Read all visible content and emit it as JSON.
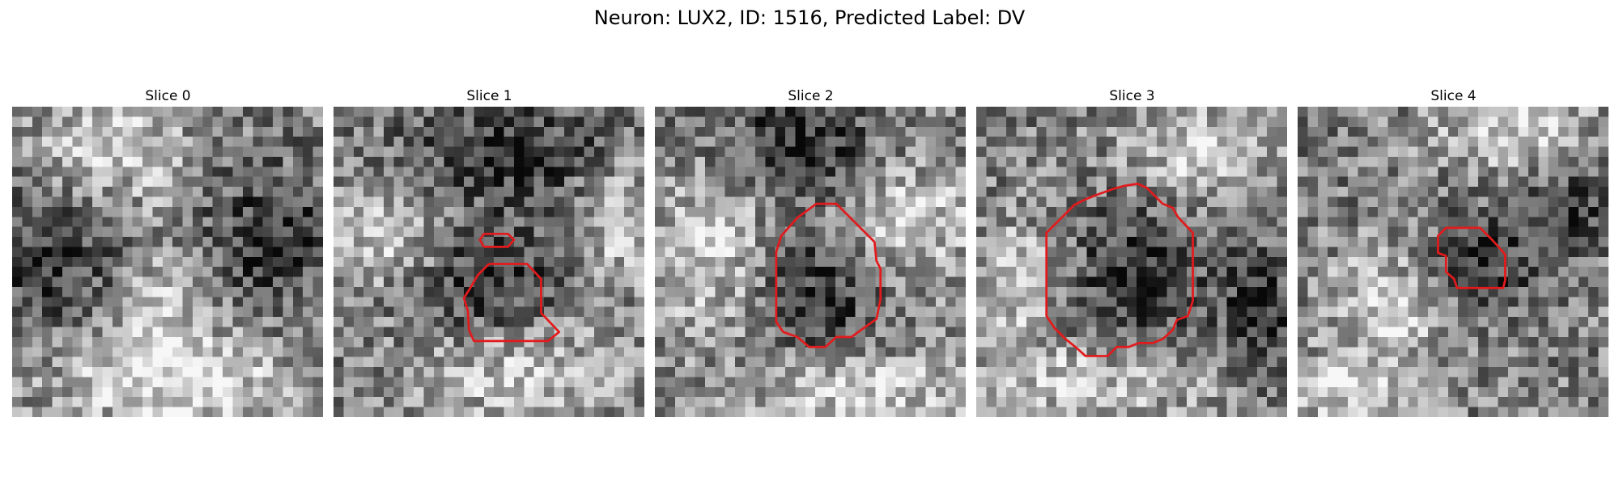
{
  "figure": {
    "title": "Neuron: LUX2, ID: 1516, Predicted Label: DV"
  },
  "contour_color": "#e31a1c",
  "colormap": "gray",
  "image_grid": [
    31,
    31
  ],
  "panels": [
    {
      "title": "Slice 0",
      "seed": 11,
      "dark": [
        [
          4,
          15,
          10,
          6
        ],
        [
          25,
          13,
          8,
          7
        ]
      ],
      "bright": [
        [
          9,
          3,
          7,
          5
        ],
        [
          14,
          18,
          6,
          10
        ],
        [
          17,
          27,
          14,
          5
        ]
      ],
      "contours": []
    },
    {
      "title": "Slice 1",
      "seed": 23,
      "dark": [
        [
          15,
          17,
          7,
          6
        ],
        [
          17,
          4,
          10,
          5
        ]
      ],
      "bright": [
        [
          5,
          12,
          6,
          5
        ],
        [
          18,
          26,
          10,
          5
        ],
        [
          28,
          11,
          4,
          6
        ]
      ],
      "contours": [
        [
          [
            15.0,
            14.0
          ],
          [
            14.6,
            13.3
          ],
          [
            15.0,
            12.7
          ],
          [
            17.4,
            12.7
          ],
          [
            18.0,
            13.3
          ],
          [
            17.4,
            14.0
          ],
          [
            15.0,
            14.0
          ]
        ],
        [
          [
            15.5,
            15.7
          ],
          [
            17.3,
            15.7
          ],
          [
            19.3,
            15.7
          ],
          [
            20.7,
            17.2
          ],
          [
            20.7,
            20.6
          ],
          [
            22.5,
            22.5
          ],
          [
            21.4,
            23.4
          ],
          [
            14.0,
            23.4
          ],
          [
            13.5,
            22.3
          ],
          [
            13.4,
            20.4
          ],
          [
            13.0,
            19.1
          ],
          [
            13.7,
            18.0
          ],
          [
            14.4,
            16.8
          ],
          [
            15.5,
            15.7
          ]
        ]
      ]
    },
    {
      "title": "Slice 2",
      "seed": 37,
      "dark": [
        [
          16,
          18,
          6,
          6
        ],
        [
          14,
          3,
          8,
          5
        ]
      ],
      "bright": [
        [
          5,
          14,
          6,
          8
        ],
        [
          25,
          11,
          7,
          6
        ],
        [
          20,
          28,
          12,
          4
        ]
      ],
      "contours": [
        [
          [
            16.1,
            9.7
          ],
          [
            18.1,
            9.7
          ],
          [
            20.0,
            11.6
          ],
          [
            21.9,
            13.5
          ],
          [
            22.1,
            15.4
          ],
          [
            22.5,
            16.2
          ],
          [
            22.5,
            19.2
          ],
          [
            22.1,
            21.2
          ],
          [
            20.7,
            22.2
          ],
          [
            19.6,
            23.0
          ],
          [
            18.1,
            23.0
          ],
          [
            17.0,
            24.0
          ],
          [
            15.4,
            24.0
          ],
          [
            14.2,
            23.0
          ],
          [
            12.8,
            22.5
          ],
          [
            12.1,
            21.5
          ],
          [
            12.1,
            14.5
          ],
          [
            12.6,
            12.9
          ],
          [
            14.2,
            11.1
          ],
          [
            16.1,
            9.7
          ]
        ]
      ]
    },
    {
      "title": "Slice 3",
      "seed": 53,
      "dark": [
        [
          15,
          17,
          7,
          8
        ],
        [
          28,
          20,
          4,
          6
        ]
      ],
      "bright": [
        [
          4,
          17,
          5,
          6
        ],
        [
          22,
          4,
          8,
          5
        ],
        [
          11,
          27,
          12,
          4
        ]
      ],
      "contours": [
        [
          [
            14.8,
            7.9
          ],
          [
            16.1,
            7.7
          ],
          [
            17.0,
            8.1
          ],
          [
            18.6,
            9.7
          ],
          [
            19.6,
            10.1
          ],
          [
            20.1,
            11.0
          ],
          [
            21.6,
            12.6
          ],
          [
            21.6,
            19.4
          ],
          [
            21.1,
            20.9
          ],
          [
            20.0,
            21.3
          ],
          [
            19.6,
            22.3
          ],
          [
            18.6,
            23.2
          ],
          [
            17.6,
            23.6
          ],
          [
            16.2,
            23.6
          ],
          [
            15.2,
            24.0
          ],
          [
            14.0,
            24.0
          ],
          [
            13.1,
            24.9
          ],
          [
            10.9,
            24.9
          ],
          [
            9.9,
            24.0
          ],
          [
            8.9,
            23.2
          ],
          [
            7.8,
            22.1
          ],
          [
            7.0,
            20.9
          ],
          [
            7.0,
            12.6
          ],
          [
            9.8,
            9.8
          ],
          [
            11.0,
            9.2
          ],
          [
            12.3,
            8.7
          ],
          [
            13.7,
            8.2
          ],
          [
            14.8,
            7.9
          ]
        ]
      ]
    },
    {
      "title": "Slice 4",
      "seed": 71,
      "dark": [
        [
          18,
          15,
          5,
          5
        ],
        [
          26,
          10,
          4,
          4
        ]
      ],
      "bright": [
        [
          8,
          20,
          6,
          6
        ],
        [
          21,
          2,
          8,
          4
        ],
        [
          2,
          28,
          10,
          3
        ]
      ],
      "contours": [
        [
          [
            14.8,
            12.1
          ],
          [
            18.2,
            12.1
          ],
          [
            19.4,
            13.3
          ],
          [
            20.4,
            14.4
          ],
          [
            20.7,
            14.8
          ],
          [
            20.7,
            17.3
          ],
          [
            20.5,
            18.1
          ],
          [
            19.4,
            18.1
          ],
          [
            17.6,
            18.1
          ],
          [
            15.9,
            18.1
          ],
          [
            15.6,
            17.2
          ],
          [
            14.8,
            16.5
          ],
          [
            14.8,
            14.9
          ],
          [
            14.0,
            14.6
          ],
          [
            14.0,
            12.9
          ],
          [
            14.8,
            12.1
          ]
        ]
      ]
    }
  ]
}
